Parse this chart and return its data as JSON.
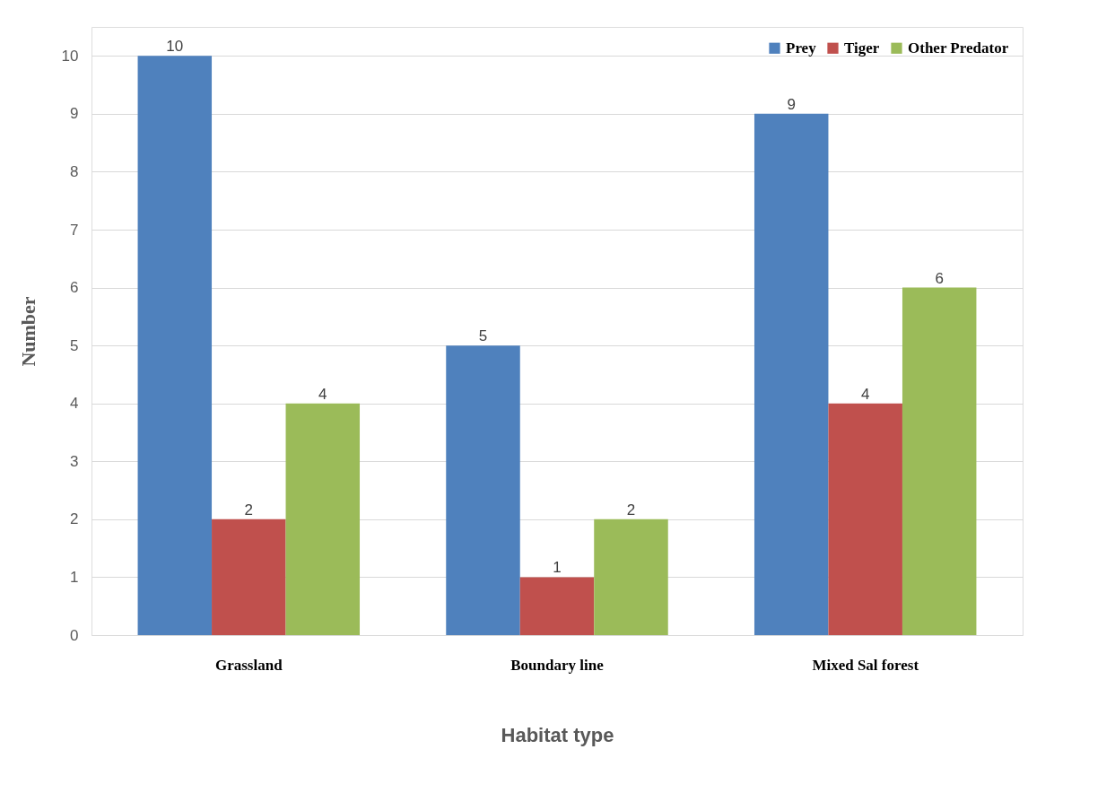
{
  "chart_data": {
    "type": "bar",
    "xlabel": "Habitat type",
    "ylabel": "Number",
    "categories": [
      "Grassland",
      "Boundary line",
      "Mixed Sal forest"
    ],
    "series": [
      {
        "name": "Prey",
        "color": "#4f81bd",
        "values": [
          10,
          5,
          9
        ]
      },
      {
        "name": "Tiger",
        "color": "#c0504d",
        "values": [
          2,
          1,
          4
        ]
      },
      {
        "name": "Other Predator",
        "color": "#9bbb59",
        "values": [
          4,
          2,
          6
        ]
      }
    ],
    "ylim": [
      0,
      10.5
    ],
    "yticks": [
      0,
      1,
      2,
      3,
      4,
      5,
      6,
      7,
      8,
      9,
      10
    ],
    "grid": "y",
    "legend": "top right",
    "data_labels": true
  }
}
